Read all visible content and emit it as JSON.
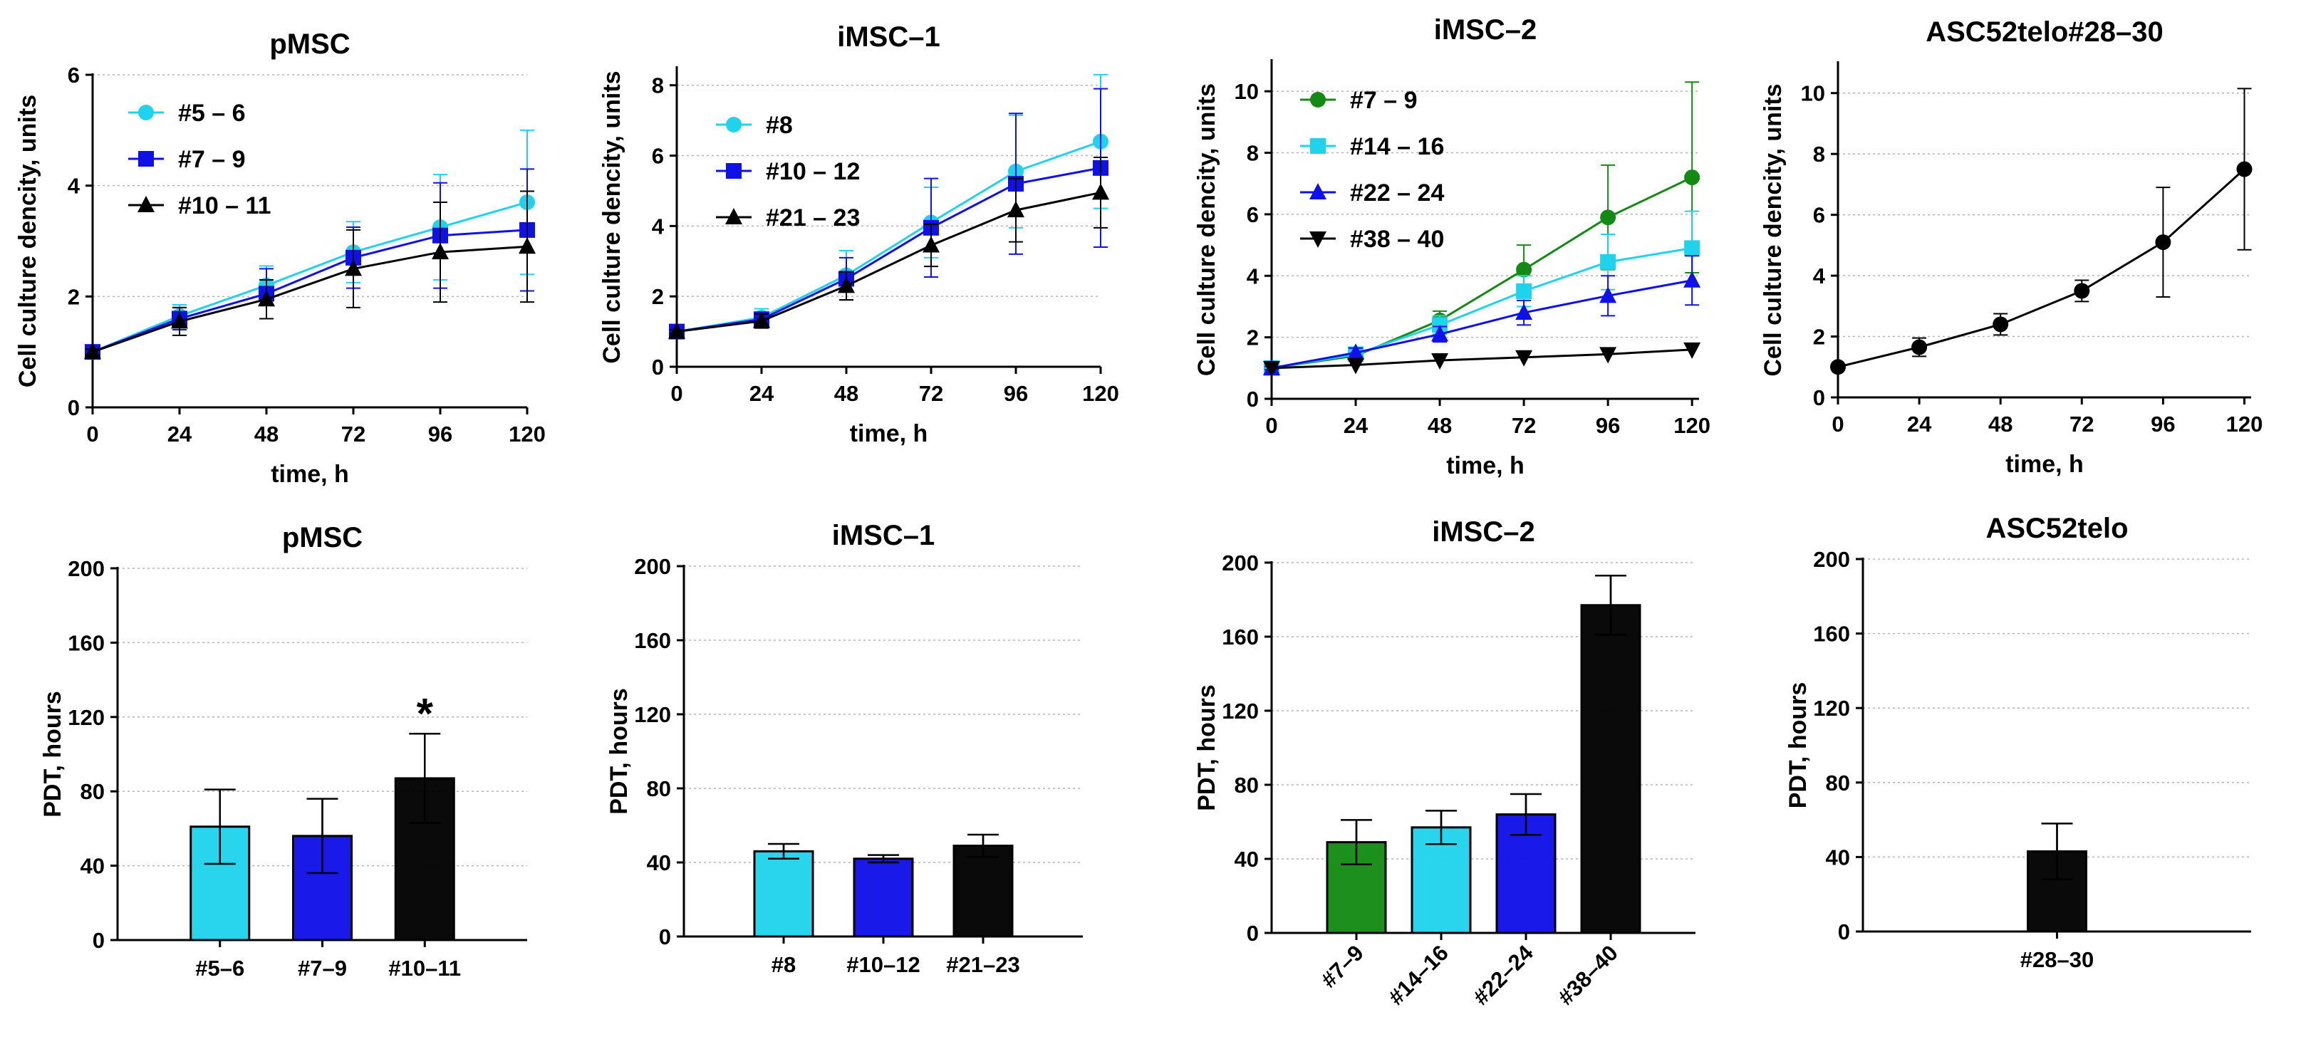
{
  "chart_data": [
    {
      "id": "lineA",
      "type": "line",
      "title": "pMSC",
      "xlabel": "time, h",
      "ylabel": "Cell culture dencity, units",
      "xlim": [
        0,
        120
      ],
      "ylim": [
        0,
        6
      ],
      "xticks": [
        0,
        24,
        48,
        72,
        96,
        120
      ],
      "yticks": [
        0,
        2,
        4,
        6
      ],
      "grid": "horizontal",
      "legend": "top-left",
      "series": [
        {
          "name": "#5 – 6",
          "color": "#1fd3ec",
          "marker": "circle",
          "x": [
            0,
            24,
            48,
            72,
            96,
            120
          ],
          "y": [
            1.0,
            1.65,
            2.2,
            2.8,
            3.25,
            3.7
          ],
          "err": [
            0.05,
            0.2,
            0.35,
            0.55,
            0.95,
            1.3
          ]
        },
        {
          "name": "#7 – 9",
          "color": "#1010e8",
          "marker": "square",
          "x": [
            0,
            24,
            48,
            72,
            96,
            120
          ],
          "y": [
            1.0,
            1.6,
            2.05,
            2.7,
            3.1,
            3.2
          ],
          "err": [
            0.05,
            0.2,
            0.45,
            0.55,
            0.95,
            1.1
          ]
        },
        {
          "name": "#10 – 11",
          "color": "#000000",
          "marker": "triangle",
          "x": [
            0,
            24,
            48,
            72,
            96,
            120
          ],
          "y": [
            1.0,
            1.55,
            1.95,
            2.5,
            2.8,
            2.9
          ],
          "err": [
            0.05,
            0.25,
            0.35,
            0.7,
            0.9,
            1.0
          ]
        }
      ]
    },
    {
      "id": "lineB",
      "type": "line",
      "title": "iMSC–1",
      "xlabel": "time, h",
      "ylabel": "Cell culture dencity, units",
      "xlim": [
        0,
        120
      ],
      "ylim": [
        0,
        8.5
      ],
      "xticks": [
        0,
        24,
        48,
        72,
        96,
        120
      ],
      "yticks": [
        0,
        2,
        4,
        6,
        8
      ],
      "grid": "horizontal",
      "legend": "top-left",
      "series": [
        {
          "name": "#8",
          "color": "#1fd3ec",
          "marker": "circle",
          "x": [
            0,
            24,
            48,
            72,
            96,
            120
          ],
          "y": [
            1.0,
            1.4,
            2.6,
            4.1,
            5.55,
            6.4
          ],
          "err": [
            0.05,
            0.25,
            0.7,
            1.0,
            1.6,
            1.9
          ]
        },
        {
          "name": "#10 – 12",
          "color": "#1010e8",
          "marker": "square",
          "x": [
            0,
            24,
            48,
            72,
            96,
            120
          ],
          "y": [
            1.0,
            1.35,
            2.5,
            3.95,
            5.2,
            5.65
          ],
          "err": [
            0.05,
            0.2,
            0.6,
            1.4,
            2.0,
            2.25
          ]
        },
        {
          "name": "#21 – 23",
          "color": "#000000",
          "marker": "triangle",
          "x": [
            0,
            24,
            48,
            72,
            96,
            120
          ],
          "y": [
            1.0,
            1.3,
            2.3,
            3.45,
            4.45,
            4.95
          ],
          "err": [
            0.05,
            0.2,
            0.4,
            0.6,
            0.9,
            1.0
          ]
        }
      ]
    },
    {
      "id": "lineC",
      "type": "line",
      "title": "iMSC–2",
      "xlabel": "time, h",
      "ylabel": "Cell culture dencity, units",
      "xlim": [
        0,
        122
      ],
      "ylim": [
        0,
        11
      ],
      "xticks": [
        0,
        24,
        48,
        72,
        96,
        120
      ],
      "yticks": [
        0,
        2,
        4,
        6,
        8,
        10
      ],
      "grid": "horizontal",
      "legend": "top-left",
      "series": [
        {
          "name": "#7 – 9",
          "color": "#138a13",
          "marker": "circle",
          "x": [
            0,
            24,
            48,
            72,
            96,
            120
          ],
          "y": [
            1.0,
            1.4,
            2.55,
            4.2,
            5.9,
            7.2
          ],
          "err": [
            0.05,
            0.15,
            0.3,
            0.8,
            1.7,
            3.1
          ]
        },
        {
          "name": "#14 – 16",
          "color": "#1fd3ec",
          "marker": "square",
          "x": [
            0,
            24,
            48,
            72,
            96,
            120
          ],
          "y": [
            1.0,
            1.45,
            2.4,
            3.5,
            4.45,
            4.9
          ],
          "err": [
            0.05,
            0.15,
            0.3,
            0.5,
            0.9,
            1.2
          ]
        },
        {
          "name": "#22 – 24",
          "color": "#1010e8",
          "marker": "triangle",
          "x": [
            0,
            24,
            48,
            72,
            96,
            120
          ],
          "y": [
            1.0,
            1.5,
            2.1,
            2.8,
            3.35,
            3.85
          ],
          "err": [
            0.05,
            0.15,
            0.25,
            0.4,
            0.65,
            0.8
          ]
        },
        {
          "name": "#38 – 40",
          "color": "#000000",
          "marker": "triangle-down",
          "x": [
            0,
            24,
            48,
            72,
            96,
            120
          ],
          "y": [
            1.0,
            1.1,
            1.25,
            1.35,
            1.45,
            1.6
          ],
          "err": [
            0.0,
            0.0,
            0.0,
            0.0,
            0.0,
            0.0
          ]
        }
      ]
    },
    {
      "id": "lineD",
      "type": "line",
      "title": "ASC52telo#28–30",
      "xlabel": "time, h",
      "ylabel": "Cell culture dencity, units",
      "xlim": [
        0,
        122
      ],
      "ylim": [
        0,
        11
      ],
      "xticks": [
        0,
        24,
        48,
        72,
        96,
        120
      ],
      "yticks": [
        0,
        2,
        4,
        6,
        8,
        10
      ],
      "grid": "horizontal",
      "legend": "none",
      "series": [
        {
          "name": "#28–30",
          "color": "#000000",
          "marker": "circle",
          "x": [
            0,
            24,
            48,
            72,
            96,
            120
          ],
          "y": [
            1.0,
            1.65,
            2.4,
            3.5,
            5.1,
            7.5
          ],
          "err": [
            0.05,
            0.3,
            0.35,
            0.35,
            1.8,
            2.65
          ]
        }
      ]
    },
    {
      "id": "barA",
      "type": "bar",
      "title": "pMSC",
      "xlabel": "",
      "ylabel": "PDT, hours",
      "ylim": [
        0,
        200
      ],
      "yticks": [
        0,
        40,
        80,
        120,
        160,
        200
      ],
      "grid": "horizontal",
      "categories": [
        "#5–6",
        "#7–9",
        "#10–11"
      ],
      "values": [
        61,
        56,
        87
      ],
      "errors": [
        20,
        20,
        24
      ],
      "colors": [
        "#1fd3ec",
        "#1010e8",
        "#000000"
      ],
      "annotations": [
        {
          "category": "#10–11",
          "text": "*"
        }
      ]
    },
    {
      "id": "barB",
      "type": "bar",
      "title": "iMSC–1",
      "xlabel": "",
      "ylabel": "PDT, hours",
      "ylim": [
        0,
        200
      ],
      "yticks": [
        0,
        40,
        80,
        120,
        160,
        200
      ],
      "grid": "horizontal",
      "categories": [
        "#8",
        "#10–12",
        "#21–23"
      ],
      "values": [
        46,
        42,
        49
      ],
      "errors": [
        4,
        2,
        6
      ],
      "colors": [
        "#1fd3ec",
        "#1010e8",
        "#000000"
      ],
      "annotations": []
    },
    {
      "id": "barC",
      "type": "bar",
      "title": "iMSC–2",
      "xlabel": "",
      "ylabel": "PDT, hours",
      "ylim": [
        0,
        200
      ],
      "yticks": [
        0,
        40,
        80,
        120,
        160,
        200
      ],
      "grid": "horizontal",
      "categories": [
        "#7–9",
        "#14–16",
        "#22–24",
        "#38–40"
      ],
      "values": [
        49,
        57,
        64,
        177
      ],
      "errors": [
        12,
        9,
        11,
        16
      ],
      "colors": [
        "#138a13",
        "#1fd3ec",
        "#1010e8",
        "#000000"
      ],
      "rotated_labels": true,
      "annotations": []
    },
    {
      "id": "barD",
      "type": "bar",
      "title": "ASC52telo",
      "xlabel": "",
      "ylabel": "PDT, hours",
      "ylim": [
        0,
        200
      ],
      "yticks": [
        0,
        40,
        80,
        120,
        160,
        200
      ],
      "grid": "horizontal",
      "categories": [
        "#28–30"
      ],
      "values": [
        43
      ],
      "errors": [
        15
      ],
      "colors": [
        "#000000"
      ],
      "annotations": []
    }
  ]
}
